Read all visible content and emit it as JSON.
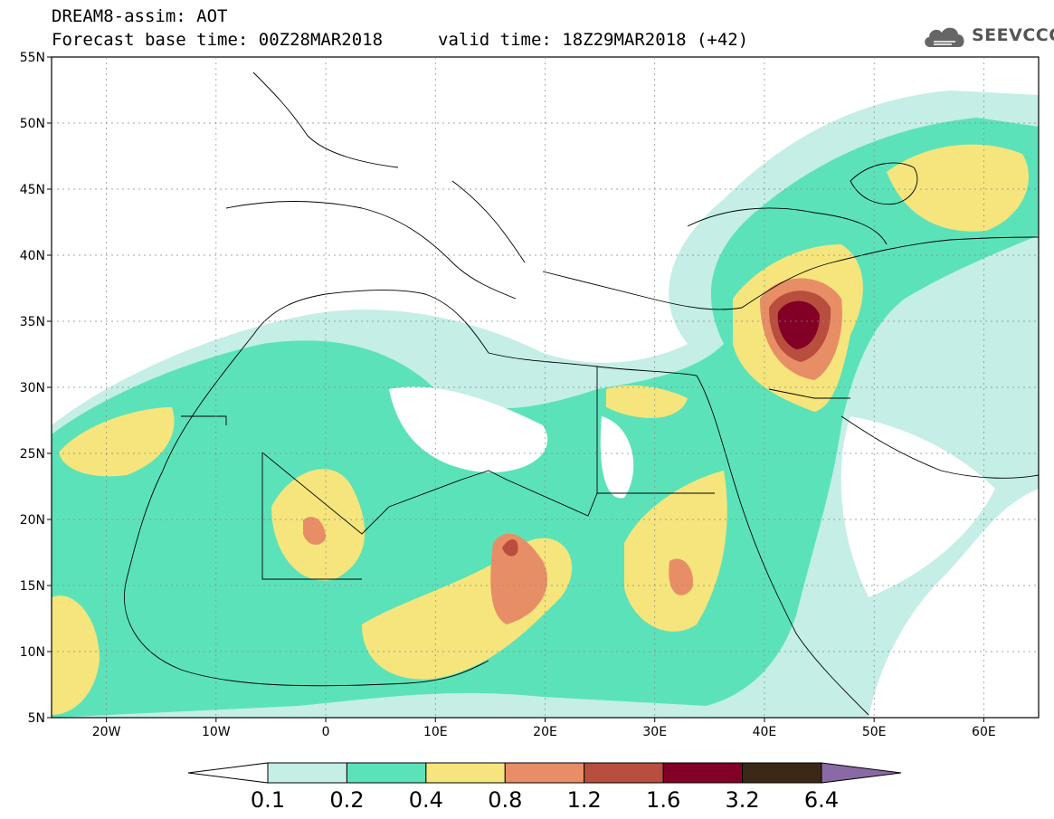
{
  "header": {
    "title_line1": "DREAM8-assim: AOT",
    "title_line2": "Forecast base time: 00Z28MAR2018",
    "valid_time": "valid time: 18Z29MAR2018 (+42)",
    "logo_text": "SEEVCCC"
  },
  "map": {
    "lon_range": [
      -25,
      65
    ],
    "lat_range": [
      5,
      55
    ],
    "lat_labels": [
      "55N",
      "50N",
      "45N",
      "40N",
      "35N",
      "30N",
      "25N",
      "20N",
      "15N",
      "10N",
      "5N"
    ],
    "lon_labels": [
      "20W",
      "10W",
      "0",
      "10E",
      "20E",
      "30E",
      "40E",
      "50E",
      "60E"
    ]
  },
  "colorbar": {
    "labels": [
      "0.1",
      "0.2",
      "0.4",
      "0.8",
      "1.2",
      "1.6",
      "3.2",
      "6.4"
    ],
    "colors": [
      "#ffffff",
      "#c4eee6",
      "#5ce2b9",
      "#f6e57c",
      "#e88e66",
      "#b84e3e",
      "#820026",
      "#3b2816",
      "#8a6aa6"
    ]
  }
}
